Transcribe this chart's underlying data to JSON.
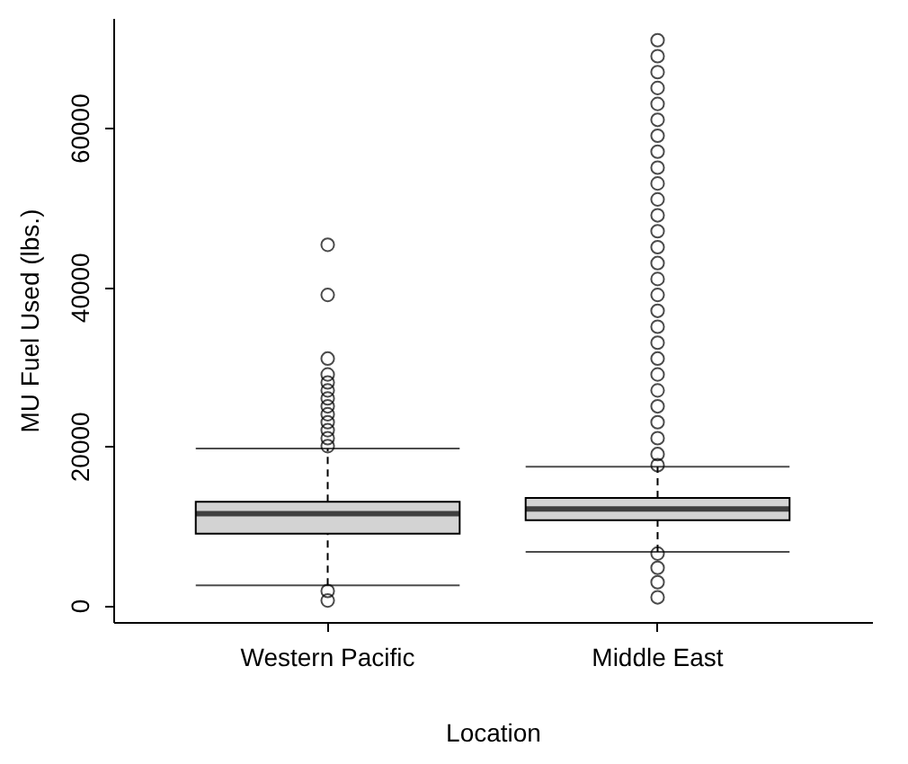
{
  "chart_data": {
    "type": "box",
    "xlabel": "Location",
    "ylabel": "MU Fuel Used (lbs.)",
    "categories": [
      "Western Pacific",
      "Middle East"
    ],
    "color": "#d3d3d3",
    "boxes": [
      {
        "low": 2500,
        "q1": 9000,
        "median": 11500,
        "q3": 13000,
        "high": 19700,
        "outliers": [
          45300,
          39000,
          31000,
          29000,
          28000,
          27000,
          26000,
          25000,
          24000,
          23000,
          22000,
          21000,
          20000,
          1800,
          600
        ]
      },
      {
        "low": 6700,
        "q1": 10700,
        "median": 12100,
        "q3": 13500,
        "high": 17400,
        "outliers": [
          71000,
          69000,
          67000,
          65000,
          63000,
          61000,
          59000,
          57000,
          55000,
          53000,
          51000,
          49000,
          47000,
          45000,
          43000,
          41000,
          39000,
          37000,
          35000,
          33000,
          31000,
          29000,
          27000,
          25000,
          23000,
          21000,
          19000,
          17600,
          6500,
          4700,
          2900,
          1000
        ]
      }
    ],
    "ylim": [
      -2100,
      73800
    ],
    "yticks": [
      {
        "value": 0,
        "label": "0"
      },
      {
        "value": 20000,
        "label": "20000"
      },
      {
        "value": 40000,
        "label": "40000"
      },
      {
        "value": 60000,
        "label": "60000"
      }
    ],
    "grid": false
  }
}
